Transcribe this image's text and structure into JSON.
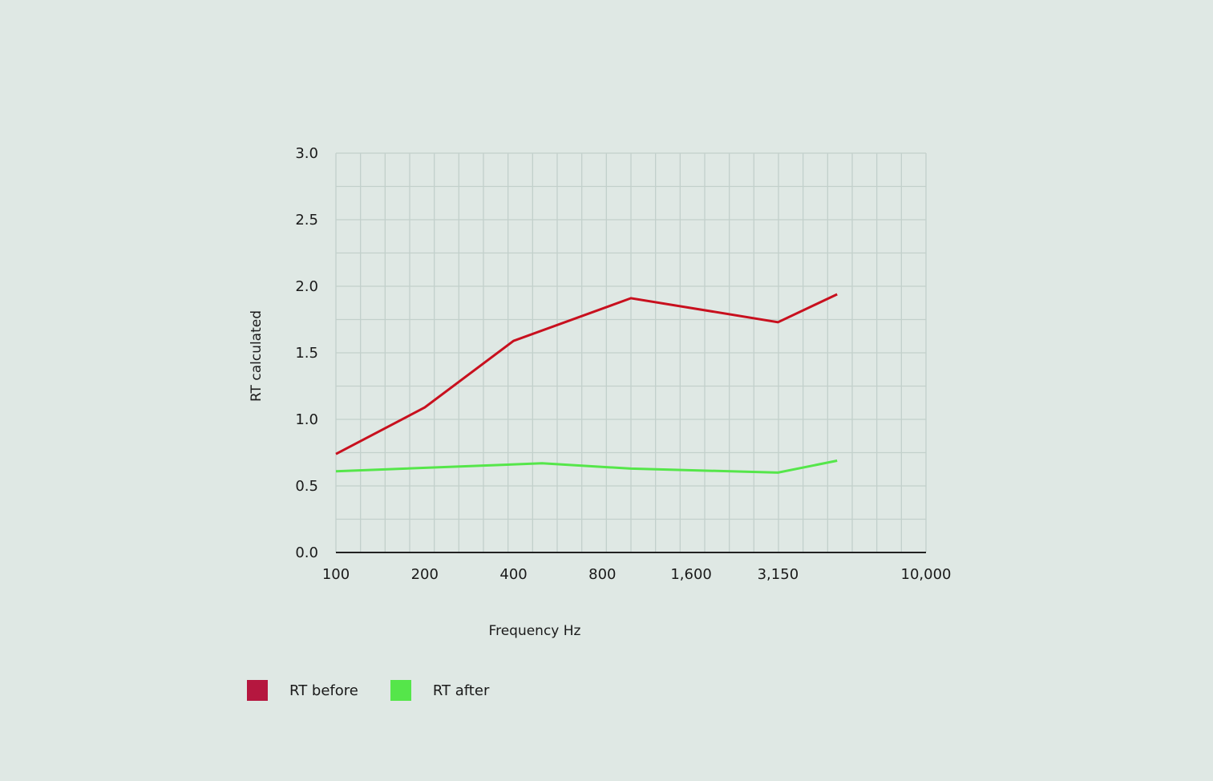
{
  "chart_data": {
    "type": "line",
    "xlabel": "Frequency Hz",
    "ylabel": "RT calculated",
    "x_scale": "log",
    "x_tick_labels": [
      "100",
      "200",
      "400",
      "800",
      "1,600",
      "3,150",
      "10,000"
    ],
    "x_tick_values": [
      100,
      200,
      400,
      800,
      1600,
      3150,
      10000
    ],
    "xlim": [
      100,
      10000
    ],
    "y_tick_labels": [
      "0.0",
      "0.5",
      "1.0",
      "1.5",
      "2.0",
      "2.5",
      "3.0"
    ],
    "ylim": [
      0,
      3
    ],
    "grid": true,
    "legend_position": "bottom-left",
    "series": [
      {
        "name": "RT before",
        "color": "#c8101e",
        "legend_color": "#b5173f",
        "points": [
          [
            100,
            0.74
          ],
          [
            200,
            1.09
          ],
          [
            400,
            1.59
          ],
          [
            1000,
            1.91
          ],
          [
            3150,
            1.73
          ],
          [
            5000,
            1.94
          ]
        ]
      },
      {
        "name": "RT after",
        "color": "#55e64a",
        "legend_color": "#55e64a",
        "points": [
          [
            100,
            0.61
          ],
          [
            500,
            0.67
          ],
          [
            1000,
            0.63
          ],
          [
            3150,
            0.6
          ],
          [
            5000,
            0.69
          ]
        ]
      }
    ]
  }
}
